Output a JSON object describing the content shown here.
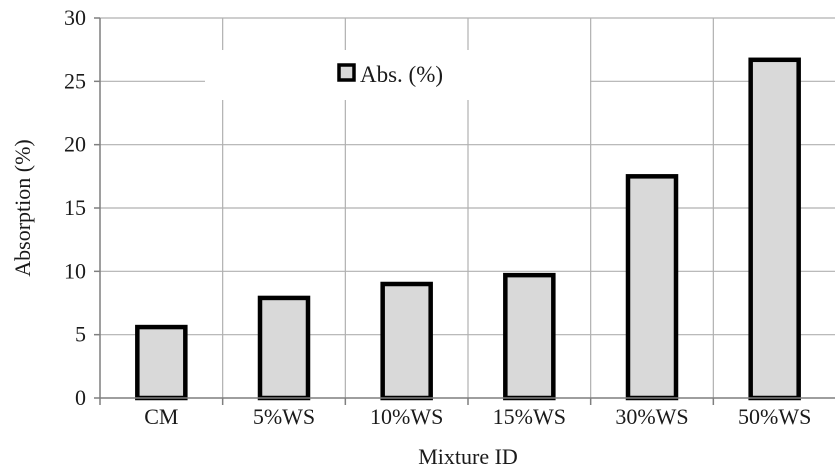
{
  "chart_data": {
    "type": "bar",
    "categories": [
      "CM",
      "5%WS",
      "10%WS",
      "15%WS",
      "30%WS",
      "50%WS"
    ],
    "series": [
      {
        "name": "Abs. (%)",
        "values": [
          5.6,
          7.9,
          9.0,
          9.7,
          17.5,
          26.7
        ]
      }
    ],
    "xlabel": "Mixture ID",
    "ylabel": "Absorption (%)",
    "ylim": [
      0,
      30
    ],
    "yticks": [
      0,
      5,
      10,
      15,
      20,
      25,
      30
    ],
    "grid": true,
    "legend": "top-center",
    "colors": {
      "bar_fill": "#d9d9d9",
      "bar_stroke": "#000000",
      "grid": "#b0b0b0",
      "axis": "#7f7f7f"
    }
  }
}
